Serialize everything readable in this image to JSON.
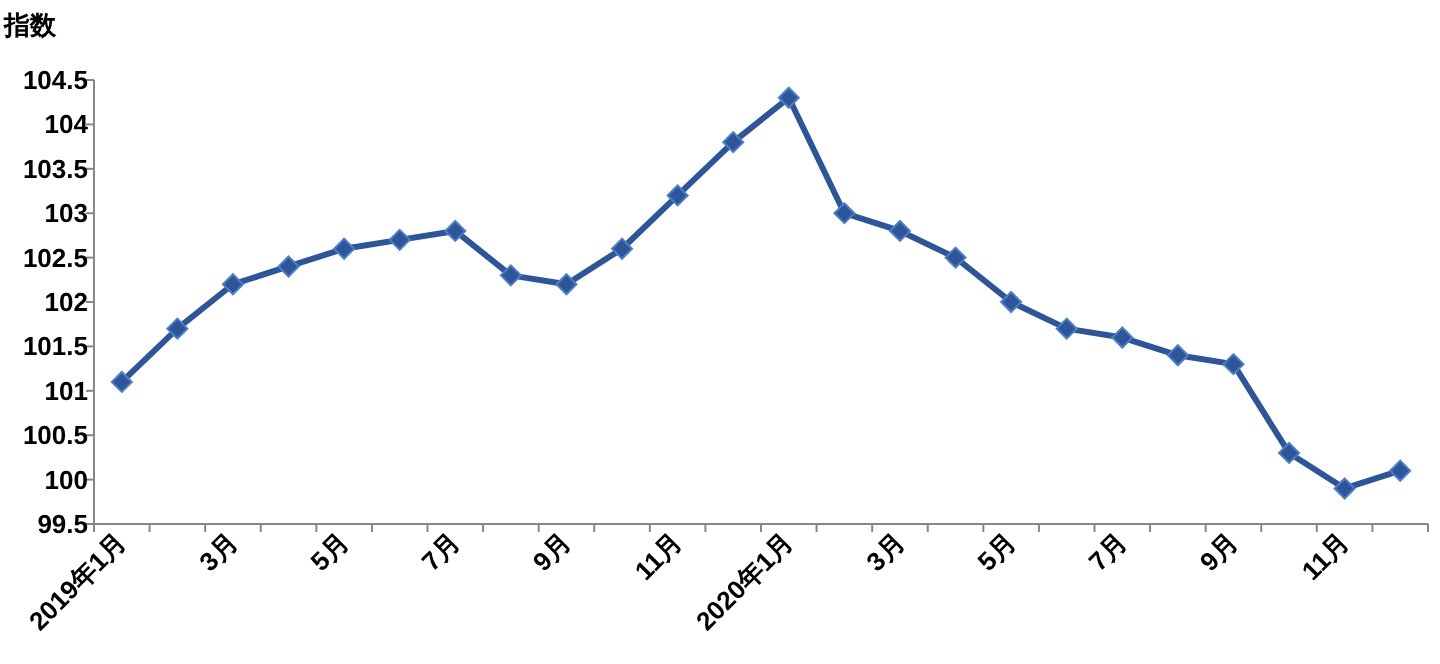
{
  "chart_data": {
    "type": "line",
    "ylabel": "指数",
    "categories": [
      "2019年1月",
      null,
      "3月",
      null,
      "5月",
      null,
      "7月",
      null,
      "9月",
      null,
      "11月",
      null,
      "2020年1月",
      null,
      "3月",
      null,
      "5月",
      null,
      "7月",
      null,
      "9月",
      null,
      "11月",
      null
    ],
    "series": [
      {
        "color": "#2e5597",
        "values": [
          101.1,
          101.7,
          102.2,
          102.4,
          102.6,
          102.7,
          102.8,
          102.3,
          102.2,
          102.6,
          103.2,
          103.8,
          104.3,
          103.0,
          102.8,
          102.5,
          102.0,
          101.7,
          101.6,
          101.4,
          101.3,
          100.3,
          99.9,
          100.1
        ]
      }
    ],
    "ylim": [
      99.5,
      104.5
    ],
    "yticks": [
      99.5,
      100,
      100.5,
      101,
      101.5,
      102,
      102.5,
      103,
      103.5,
      104,
      104.5
    ],
    "grid": false,
    "marker": "diamond",
    "line_style": "solid"
  }
}
